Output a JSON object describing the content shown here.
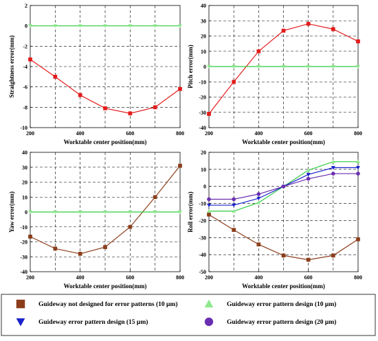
{
  "colors": {
    "no_design": "#e41b1b",
    "no_design_brown": "#8b3d1a",
    "design10": "#2ecc40",
    "design10_marker": "#8ee88e",
    "design15": "#1a22cc",
    "design20": "#6a2fb0"
  },
  "legend": {
    "items": [
      {
        "label": "Guideway not designed for error patterns (10 μm)",
        "marker": "square",
        "color": "#8b3d1a"
      },
      {
        "label": "Guideway error pattern design (10 μm)",
        "marker": "triangle-up",
        "color": "#8ee88e"
      },
      {
        "label": "Guideway error pattern design (15 μm)",
        "marker": "triangle-down",
        "color": "#1a22cc"
      },
      {
        "label": "Guideway error pattern design (20 μm)",
        "marker": "circle",
        "color": "#6a2fb0"
      }
    ]
  },
  "chart_data": [
    {
      "type": "line",
      "xlabel": "Worktable center position(mm)",
      "ylabel": "Straightness error(mm)",
      "xlim": [
        200,
        800
      ],
      "ylim": [
        -10,
        2
      ],
      "xticks": [
        200,
        400,
        600,
        800
      ],
      "yticks": [
        -10,
        -8,
        -6,
        -4,
        -2,
        0,
        2
      ],
      "grid": true,
      "series": [
        {
          "name": "Guideway not designed for error patterns (10 μm)",
          "color": "#e41b1b",
          "marker": "square",
          "x": [
            200,
            300,
            400,
            500,
            600,
            700,
            800
          ],
          "y": [
            -3.3,
            -5.0,
            -6.8,
            -8.1,
            -8.6,
            -8.0,
            -6.2
          ]
        },
        {
          "name": "Guideway error pattern design (10 μm)",
          "color": "#2ecc40",
          "marker": "triangle-down",
          "x": [
            200,
            300,
            400,
            500,
            600,
            700,
            800
          ],
          "y": [
            0,
            0,
            0,
            0,
            0,
            0,
            0
          ]
        }
      ]
    },
    {
      "type": "line",
      "xlabel": "Worktable center position(mm)",
      "ylabel": "Pitch error(mm)",
      "xlim": [
        200,
        800
      ],
      "ylim": [
        -40,
        40
      ],
      "xticks": [
        200,
        400,
        600,
        800
      ],
      "yticks": [
        -40,
        -30,
        -20,
        -10,
        0,
        10,
        20,
        30,
        40
      ],
      "grid": true,
      "series": [
        {
          "name": "Guideway not designed for error patterns (10 μm)",
          "color": "#e41b1b",
          "marker": "square",
          "x": [
            200,
            300,
            400,
            500,
            600,
            700,
            800
          ],
          "y": [
            -31,
            -10,
            10,
            23.5,
            28,
            24.5,
            16.5
          ]
        },
        {
          "name": "Guideway error pattern design (10 μm)",
          "color": "#2ecc40",
          "marker": "triangle-down",
          "x": [
            200,
            300,
            400,
            500,
            600,
            700,
            800
          ],
          "y": [
            0,
            0,
            0,
            0,
            0,
            0,
            0
          ]
        }
      ]
    },
    {
      "type": "line",
      "xlabel": "Worktable center position(mm)",
      "ylabel": "Yaw error(mm)",
      "xlim": [
        200,
        800
      ],
      "ylim": [
        -40,
        40
      ],
      "xticks": [
        200,
        400,
        600,
        800
      ],
      "yticks": [
        -40,
        -30,
        -20,
        -10,
        0,
        10,
        20,
        30,
        40
      ],
      "grid": true,
      "series": [
        {
          "name": "Guideway not designed for error patterns (10 μm)",
          "color": "#8b3d1a",
          "marker": "square",
          "x": [
            200,
            300,
            400,
            500,
            600,
            700,
            800
          ],
          "y": [
            -16.5,
            -24.5,
            -28,
            -23.5,
            -10,
            10,
            31
          ]
        },
        {
          "name": "Guideway error pattern design (10 μm)",
          "color": "#2ecc40",
          "marker": "triangle-down",
          "x": [
            200,
            300,
            400,
            500,
            600,
            700,
            800
          ],
          "y": [
            0,
            0,
            0,
            0,
            0,
            0,
            0
          ]
        }
      ]
    },
    {
      "type": "line",
      "xlabel": "Worktable center position(mm)",
      "ylabel": "Roll error(mm)",
      "xlim": [
        200,
        800
      ],
      "ylim": [
        -50,
        20
      ],
      "xticks": [
        200,
        400,
        600,
        800
      ],
      "yticks": [
        -50,
        -40,
        -30,
        -20,
        -10,
        0,
        10,
        20
      ],
      "grid": true,
      "series": [
        {
          "name": "Guideway not designed for error patterns (10 μm)",
          "color": "#8b3d1a",
          "marker": "square",
          "x": [
            200,
            300,
            400,
            500,
            600,
            700,
            800
          ],
          "y": [
            -16.5,
            -25.5,
            -34,
            -40.5,
            -43,
            -40.5,
            -31
          ]
        },
        {
          "name": "Guideway error pattern design (10 μm)",
          "color": "#2ecc40",
          "marker": "triangle-up",
          "x": [
            200,
            300,
            400,
            500,
            600,
            700,
            800
          ],
          "y": [
            -14.5,
            -14.5,
            -9.5,
            0,
            9.5,
            14.5,
            14.5
          ]
        },
        {
          "name": "Guideway error pattern design (15 μm)",
          "color": "#1a22cc",
          "marker": "triangle-down",
          "x": [
            200,
            300,
            400,
            500,
            600,
            700,
            800
          ],
          "y": [
            -11,
            -11,
            -7,
            0,
            7,
            11,
            11
          ]
        },
        {
          "name": "Guideway error pattern design (20 μm)",
          "color": "#6a2fb0",
          "marker": "circle",
          "x": [
            200,
            300,
            400,
            500,
            600,
            700,
            800
          ],
          "y": [
            -7.5,
            -7.5,
            -4.5,
            0,
            4.5,
            7.5,
            7.5
          ]
        }
      ]
    }
  ]
}
